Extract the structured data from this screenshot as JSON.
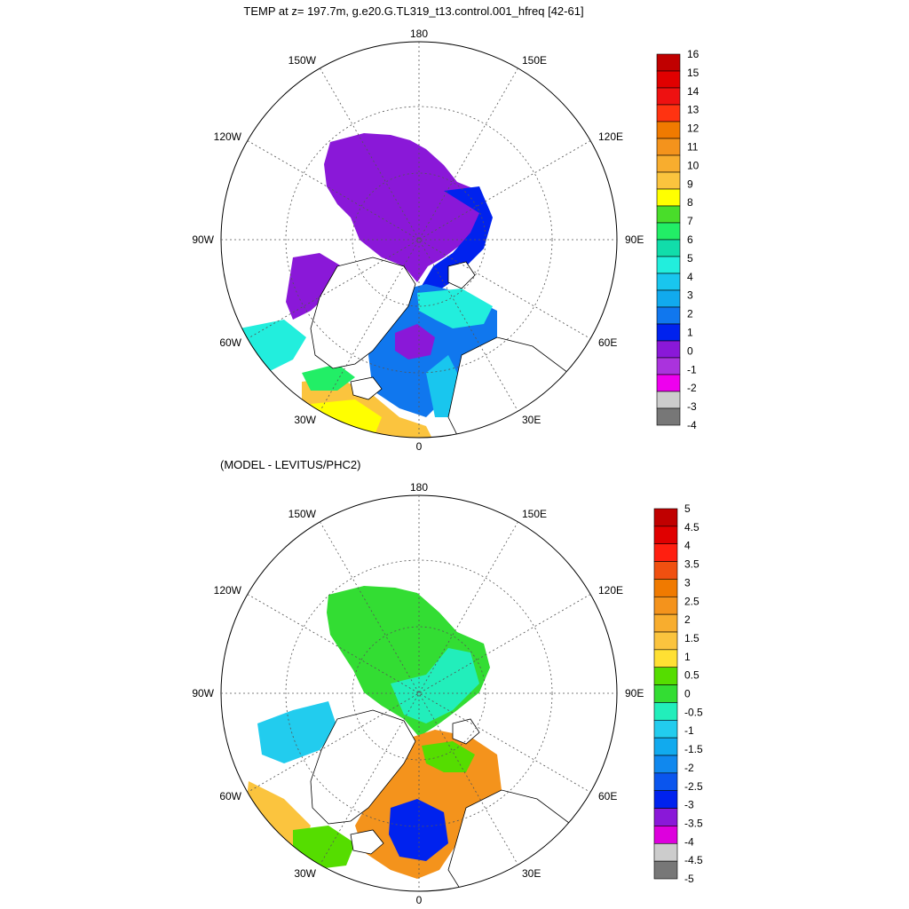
{
  "panels": [
    {
      "title": "TEMP at z= 197.7m, g.e20.G.TL319_t13.control.001_hfreq [42-61]",
      "lon_labels": {
        "top": "180",
        "bottom": "0",
        "left": "90W",
        "right": "90E",
        "nw_outer": "150W",
        "nw_inner": "120W",
        "ne_outer": "150E",
        "ne_inner": "120E",
        "sw_inner": "60W",
        "sw_outer": "30W",
        "se_inner": "60E",
        "se_outer": "30E"
      },
      "colorbar": {
        "labels": [
          "16",
          "15",
          "14",
          "13",
          "12",
          "11",
          "10",
          "9",
          "8",
          "7",
          "6",
          "5",
          "4",
          "3",
          "2",
          "1",
          "0",
          "-1",
          "-2",
          "-3",
          "-4"
        ],
        "colors": [
          "#c00000",
          "#e00000",
          "#ee1111",
          "#ff3311",
          "#f07a00",
          "#f4931c",
          "#f8ad2e",
          "#fbc43e",
          "#ffff00",
          "#49dd2a",
          "#22ee66",
          "#11ddaa",
          "#22eedd",
          "#19c6ee",
          "#11aaee",
          "#1077ee",
          "#0022ee",
          "#8a18d8",
          "#aa33dd",
          "#ee00ee",
          "#cccccc",
          "#777777"
        ]
      }
    },
    {
      "title": "(MODEL - LEVITUS/PHC2)",
      "lon_labels": {
        "top": "180",
        "bottom": "0",
        "left": "90W",
        "right": "90E",
        "nw_outer": "150W",
        "nw_inner": "120W",
        "ne_outer": "150E",
        "ne_inner": "120E",
        "sw_inner": "60W",
        "sw_outer": "30W",
        "se_inner": "60E",
        "se_outer": "30E"
      },
      "colorbar": {
        "labels": [
          "5",
          "4.5",
          "4",
          "3.5",
          "3",
          "2.5",
          "2",
          "1.5",
          "1",
          "0.5",
          "0",
          "-0.5",
          "-1",
          "-1.5",
          "-2",
          "-2.5",
          "-3",
          "-3.5",
          "-4",
          "-4.5",
          "-5"
        ],
        "colors": [
          "#c00000",
          "#e00000",
          "#ff1f10",
          "#f05010",
          "#f07a00",
          "#f4931c",
          "#f8ad2e",
          "#fbc43e",
          "#ffe033",
          "#55dd00",
          "#33dd33",
          "#22eebb",
          "#22ccee",
          "#11aaee",
          "#1088ee",
          "#0a55ee",
          "#0022ee",
          "#8a18d8",
          "#dd00dd",
          "#cccccc",
          "#777777"
        ]
      }
    }
  ]
}
